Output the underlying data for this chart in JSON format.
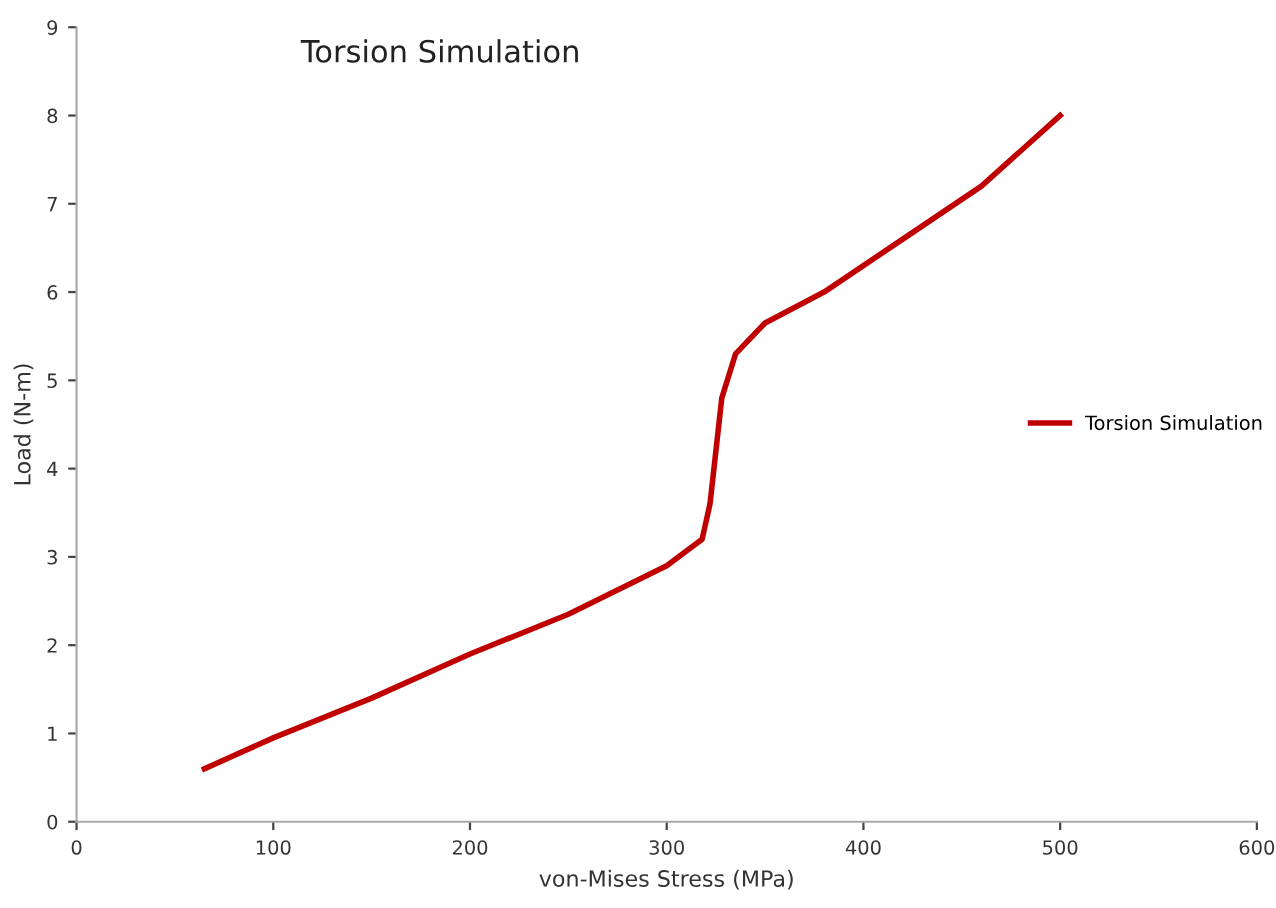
{
  "chart_data": {
    "type": "line",
    "title": "Torsion Simulation",
    "xlabel": "von-Mises Stress (MPa)",
    "ylabel": "Load (N-m)",
    "series": [
      {
        "name": "Torsion Simulation",
        "color": "#c00000",
        "x": [
          65,
          100,
          150,
          200,
          250,
          300,
          318,
          322,
          325,
          328,
          335,
          350,
          380,
          420,
          460,
          500
        ],
        "values": [
          0.6,
          0.95,
          1.4,
          1.9,
          2.35,
          2.9,
          3.2,
          3.6,
          4.2,
          4.8,
          5.3,
          5.65,
          6.0,
          6.6,
          7.2,
          8.0
        ]
      }
    ],
    "xlim": [
      0,
      600
    ],
    "xticks": [
      0,
      100,
      200,
      300,
      400,
      500,
      600
    ],
    "ylim": [
      0,
      9
    ],
    "yticks": [
      0,
      1,
      2,
      3,
      4,
      5,
      6,
      7,
      8,
      9
    ],
    "grid": false,
    "legend": "right",
    "marker": "none",
    "line_style": "solid"
  }
}
